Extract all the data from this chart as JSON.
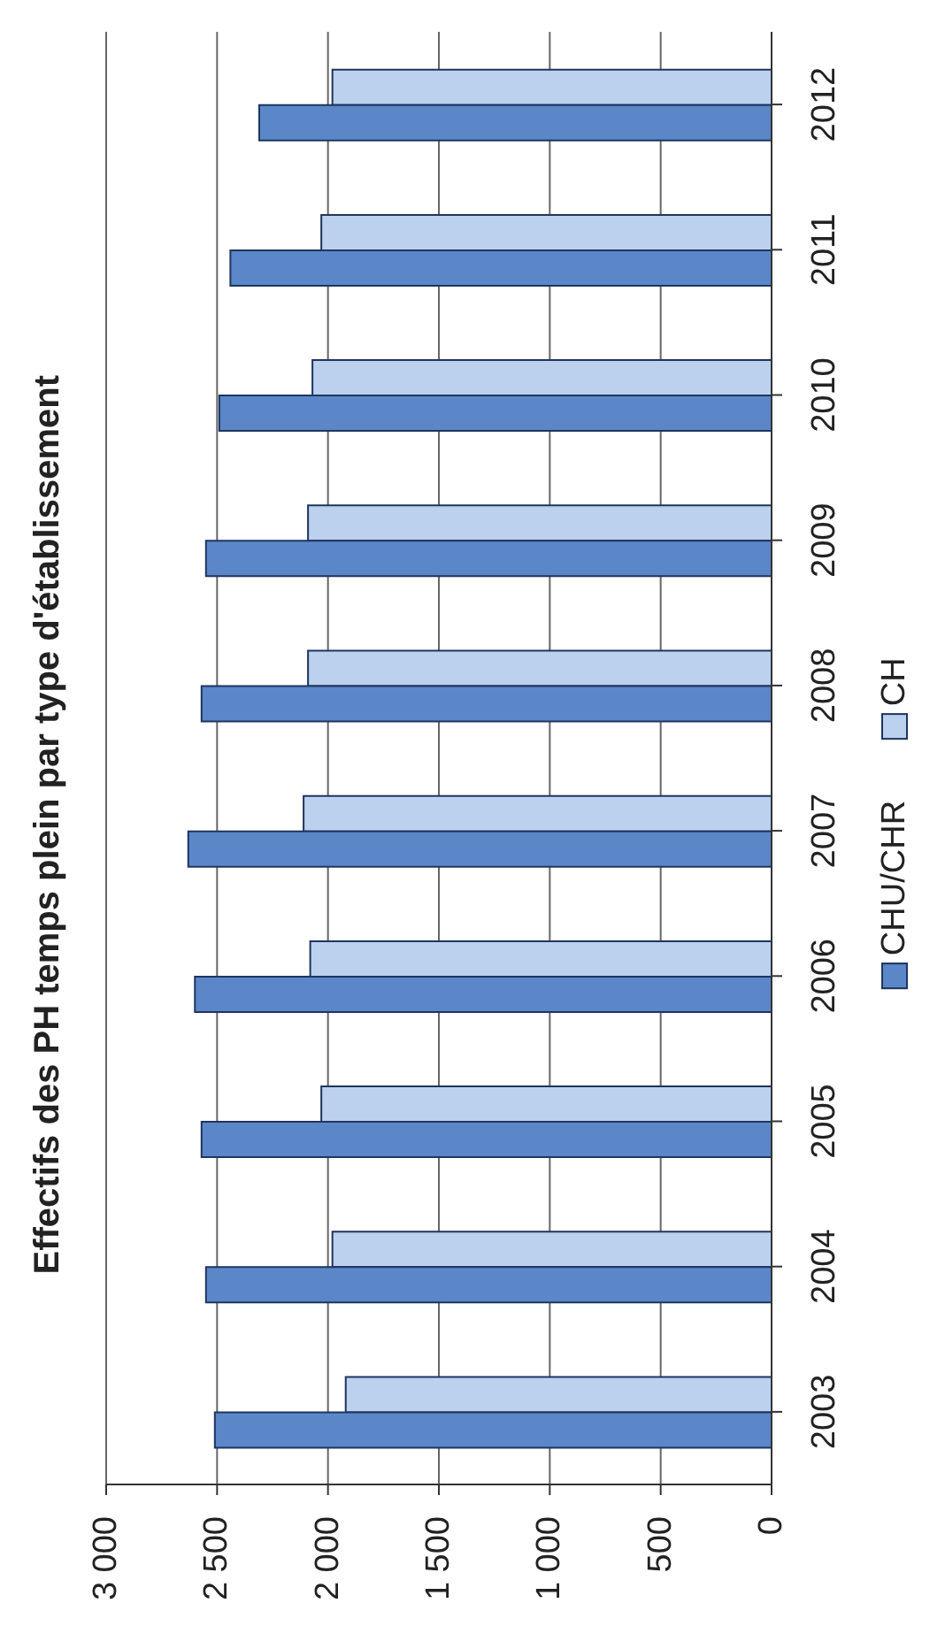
{
  "chart_data": {
    "type": "bar",
    "orientation": "horizontal",
    "title": "Effectifs des PH temps plein par type d'établissement",
    "categories": [
      "2012",
      "2011",
      "2010",
      "2009",
      "2008",
      "2007",
      "2006",
      "2005",
      "2004",
      "2003"
    ],
    "series": [
      {
        "name": "CHU/CHR",
        "color": "#5b87c8",
        "values": [
          2310,
          2440,
          2490,
          2550,
          2570,
          2630,
          2600,
          2570,
          2550,
          2510
        ]
      },
      {
        "name": "CH",
        "color": "#bcd1ee",
        "values": [
          1980,
          2030,
          2070,
          2090,
          2090,
          2110,
          2080,
          2030,
          1980,
          1920
        ]
      }
    ],
    "xlim": [
      3000,
      0
    ],
    "xticks": [
      {
        "value": 3000,
        "label": "3 000"
      },
      {
        "value": 2500,
        "label": "2 500"
      },
      {
        "value": 2000,
        "label": "2 000"
      },
      {
        "value": 1500,
        "label": "1 500"
      },
      {
        "value": 1000,
        "label": "1 000"
      },
      500,
      0
    ],
    "grid": "x",
    "legend": "right"
  }
}
